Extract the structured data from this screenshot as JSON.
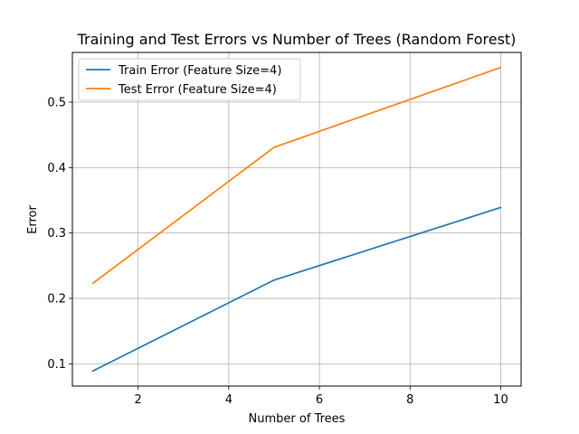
{
  "chart_data": {
    "type": "line",
    "title": "Training and Test Errors vs Number of Trees (Random Forest)",
    "xlabel": "Number of Trees",
    "ylabel": "Error",
    "x": [
      1,
      5,
      10
    ],
    "series": [
      {
        "name": "Train Error (Feature Size=4)",
        "values": [
          0.089,
          0.228,
          0.339
        ],
        "color": "#1f77b4"
      },
      {
        "name": "Test Error (Feature Size=4)",
        "values": [
          0.223,
          0.431,
          0.553
        ],
        "color": "#ff7f0e"
      }
    ],
    "xlim": [
      0.55,
      10.45
    ],
    "ylim": [
      0.066,
      0.576
    ],
    "xticks": [
      2,
      4,
      6,
      8,
      10
    ],
    "yticks": [
      0.1,
      0.2,
      0.3,
      0.4,
      0.5
    ],
    "xtick_labels": [
      "2",
      "4",
      "6",
      "8",
      "10"
    ],
    "ytick_labels": [
      "0.1",
      "0.2",
      "0.3",
      "0.4",
      "0.5"
    ],
    "grid": true,
    "legend_position": "top-left"
  }
}
